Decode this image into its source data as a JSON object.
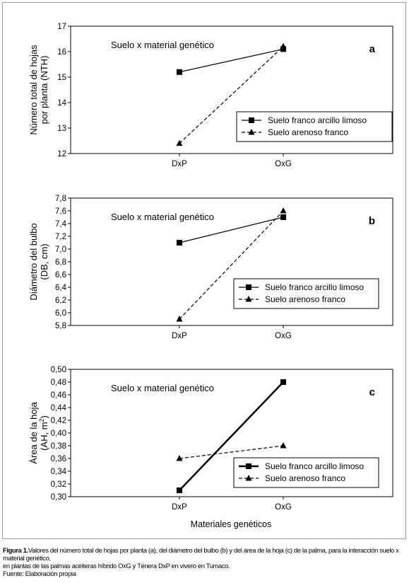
{
  "chart_data": [
    {
      "type": "line",
      "panel_letter": "a",
      "annotation": "Suelo x material genético",
      "ylabel_lines": [
        "Número total de hojas",
        "por planta (NTH)"
      ],
      "categories": [
        "DxP",
        "OxG"
      ],
      "ylim": [
        12,
        17
      ],
      "yticks": [
        "12",
        "13",
        "14",
        "15",
        "16",
        "17"
      ],
      "series": [
        {
          "name": "Suelo franco arcillo limoso",
          "values": [
            15.2,
            16.1
          ],
          "marker": "square",
          "line": "solid"
        },
        {
          "name": "Suelo arenoso franco",
          "values": [
            12.4,
            16.2
          ],
          "marker": "triangle",
          "line": "dashed"
        }
      ],
      "legend": "bottom-right"
    },
    {
      "type": "line",
      "panel_letter": "b",
      "annotation": "Suelo x material genético",
      "ylabel_lines": [
        "Diámetro del bulbo",
        "(DB, cm)"
      ],
      "categories": [
        "DxP",
        "OxG"
      ],
      "ylim": [
        5.8,
        7.8
      ],
      "yticks": [
        "5,8",
        "6,0",
        "6,2",
        "6,4",
        "6,6",
        "6,8",
        "7,0",
        "7,2",
        "7,4",
        "7,6",
        "7,8"
      ],
      "series": [
        {
          "name": "Suelo franco arcillo limoso",
          "values": [
            7.1,
            7.5
          ],
          "marker": "square",
          "line": "solid"
        },
        {
          "name": "Suelo arenoso franco",
          "values": [
            5.9,
            7.6
          ],
          "marker": "triangle",
          "line": "dashed"
        }
      ],
      "legend": "bottom-right"
    },
    {
      "type": "line",
      "panel_letter": "c",
      "annotation": "Suelo x material genético",
      "ylabel_lines": [
        "Área de la hoja",
        "(AH, m",
        ")"
      ],
      "ylabel_sup": "2",
      "categories": [
        "DxP",
        "OxG"
      ],
      "ylim": [
        0.3,
        0.5
      ],
      "yticks": [
        "0,30",
        "0,32",
        "0,34",
        "0,36",
        "0,38",
        "0,40",
        "0,42",
        "0,44",
        "0,46",
        "0,48",
        "0,50"
      ],
      "xlabel": "Materiales genéticos",
      "series": [
        {
          "name": "Suelo franco arcillo limoso",
          "values": [
            0.31,
            0.48
          ],
          "marker": "square",
          "line": "solid-thick"
        },
        {
          "name": "Suelo arenoso franco",
          "values": [
            0.36,
            0.38
          ],
          "marker": "triangle",
          "line": "dashed"
        }
      ],
      "legend": "bottom-right"
    }
  ],
  "caption": {
    "label": "Figura 1.",
    "line1": "Valores del número total de hojas por planta (a), del diámetro del bulbo (b) y del área de la hoja (c) de la palma, para la interacción suelo x material genético,",
    "line2": "en plantas de las palmas aceiteras híbrido OxG y Ténera DxP en vivero en Tumaco.",
    "source": "Fuente: Elaboración propia"
  }
}
